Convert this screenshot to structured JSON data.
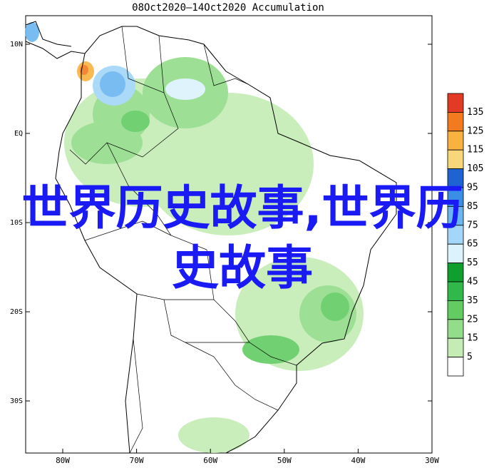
{
  "title": "08Oct2020—14Oct2020 Accumulation",
  "map": {
    "lat_labels": [
      "10N",
      "EQ",
      "10S",
      "20S",
      "30S"
    ],
    "lon_labels": [
      "80W",
      "70W",
      "60W",
      "50W",
      "40W",
      "30W"
    ]
  },
  "legend": {
    "labels": [
      "135",
      "125",
      "115",
      "105",
      "95",
      "85",
      "75",
      "65",
      "55",
      "45",
      "35",
      "25",
      "15",
      "5"
    ],
    "colors": [
      "#e33a26",
      "#f27b1f",
      "#f9b23f",
      "#f8d77a",
      "#1f62d1",
      "#3a8ee6",
      "#6bb5f0",
      "#a3d6f8",
      "#dcf2fc",
      "#0e9f2e",
      "#30b84a",
      "#62cc62",
      "#93dc8a",
      "#c4ecb4",
      "#ffffff"
    ]
  },
  "overlay_text": "世界历史故事,世界历史故事"
}
